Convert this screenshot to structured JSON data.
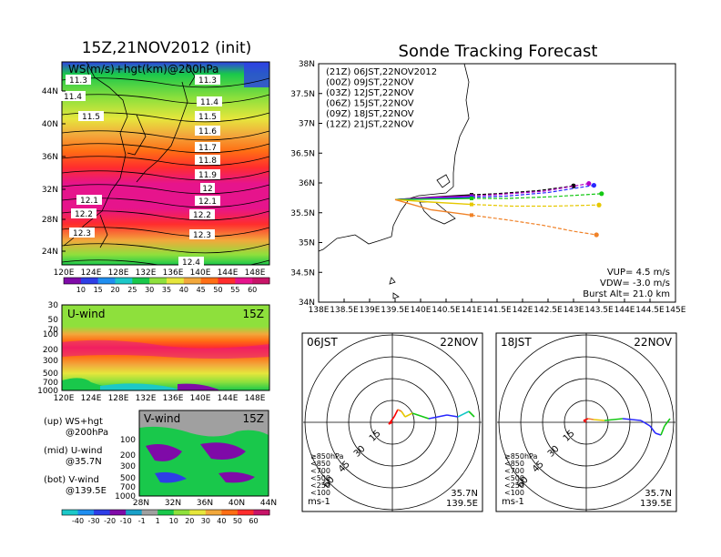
{
  "left": {
    "title": "15Z,21NOV2012 (init)",
    "map": {
      "label": "WS(m/s)+hgt(km)@200hPa",
      "lat_ticks": [
        "44N",
        "40N",
        "36N",
        "32N",
        "28N",
        "24N"
      ],
      "lon_ticks": [
        "120E",
        "124E",
        "128E",
        "132E",
        "136E",
        "140E",
        "144E",
        "148E"
      ],
      "contours": [
        {
          "label": "11.3"
        },
        {
          "label": "11.3"
        },
        {
          "label": "11.4"
        },
        {
          "label": "11.4"
        },
        {
          "label": "11.5"
        },
        {
          "label": "11.5"
        },
        {
          "label": "11.6"
        },
        {
          "label": "11.7"
        },
        {
          "label": "11.8"
        },
        {
          "label": "11.9"
        },
        {
          "label": "12"
        },
        {
          "label": "12.1"
        },
        {
          "label": "12.1"
        },
        {
          "label": "12.2"
        },
        {
          "label": "12.2"
        },
        {
          "label": "12.3"
        },
        {
          "label": "12.3"
        },
        {
          "label": "12.4"
        }
      ]
    },
    "colorbar_top": {
      "labels": [
        "10",
        "15",
        "20",
        "25",
        "30",
        "35",
        "40",
        "45",
        "50",
        "55",
        "60"
      ],
      "colors": [
        "#7f0aa8",
        "#2e3ee6",
        "#1f8ef0",
        "#1cc8c8",
        "#19c84b",
        "#8ee03c",
        "#e6e63c",
        "#f2a83c",
        "#ff6e14",
        "#ff2d2d",
        "#e6148c",
        "#c81468"
      ]
    },
    "uwind": {
      "label": "U-wind",
      "time": "15Z",
      "p_ticks": [
        "30",
        "50",
        "70",
        "100",
        "200",
        "300",
        "500",
        "700",
        "1000"
      ],
      "lon_ticks": [
        "120E",
        "124E",
        "128E",
        "132E",
        "136E",
        "140E",
        "144E",
        "148E"
      ]
    },
    "vwind": {
      "label": "V-wind",
      "time": "15Z",
      "p_ticks": [
        "100",
        "200",
        "300",
        "500",
        "700",
        "1000"
      ],
      "lat_ticks": [
        "28N",
        "32N",
        "36N",
        "40N",
        "44N"
      ]
    },
    "legend": {
      "up_1": "(up) WS+hgt",
      "up_2": "@200hPa",
      "mid_1": "(mid) U-wind",
      "mid_2": "@35.7N",
      "bot_1": "(bot) V-wind",
      "bot_2": "@139.5E"
    },
    "colorbar_bottom": {
      "labels": [
        "-40",
        "-30",
        "-20",
        "-10",
        "-1",
        "1",
        "10",
        "20",
        "30",
        "40",
        "50",
        "60"
      ],
      "colors": [
        "#1cc8c8",
        "#1f8ef0",
        "#2e3ee6",
        "#7f0aa8",
        "#19a0c8",
        "#a0a0a0",
        "#19c84b",
        "#8ee03c",
        "#e6e63c",
        "#f2a83c",
        "#ff6e14",
        "#ff2d2d",
        "#c81468"
      ]
    }
  },
  "right": {
    "title": "Sonde Tracking Forecast",
    "lat_ticks": [
      "38N",
      "37.5N",
      "37N",
      "36.5N",
      "36N",
      "35.5N",
      "35N",
      "34.5N",
      "34N"
    ],
    "lon_ticks": [
      "138E",
      "138.5E",
      "139E",
      "139.5E",
      "140E",
      "140.5E",
      "141E",
      "141.5E",
      "142E",
      "142.5E",
      "143E",
      "143.5E",
      "144E",
      "144.5E",
      "145E"
    ],
    "legend": [
      {
        "label": "(21Z) 06JST,22NOV2012",
        "color": "#000000"
      },
      {
        "label": "(00Z) 09JST,22NOV",
        "color": "#b400c8"
      },
      {
        "label": "(03Z) 12JST,22NOV",
        "color": "#2828ff"
      },
      {
        "label": "(06Z) 15JST,22NOV",
        "color": "#14c814"
      },
      {
        "label": "(09Z) 18JST,22NOV",
        "color": "#e6c800"
      },
      {
        "label": "(12Z) 21JST,22NOV",
        "color": "#f08228"
      }
    ],
    "info": {
      "vup": "VUP= 4.5 m/s",
      "vdw": "VDW= -3.0 m/s",
      "burst": "Burst Alt= 21.0 km"
    }
  },
  "polar_left": {
    "time": "06JST",
    "date": "22NOV",
    "rings": [
      "15",
      "30",
      "45",
      "60"
    ],
    "levels": [
      {
        "label": "≥850hPa",
        "color": "#ff0000"
      },
      {
        "label": "<850",
        "color": "#f08228"
      },
      {
        "label": "<700",
        "color": "#e6c800"
      },
      {
        "label": "<500",
        "color": "#14c814"
      },
      {
        "label": "<250",
        "color": "#14c8c8"
      },
      {
        "label": "<100",
        "color": "#2828ff"
      }
    ],
    "unit": "ms-1",
    "lat": "35.7N",
    "lon": "139.5E"
  },
  "polar_right": {
    "time": "18JST",
    "date": "22NOV",
    "rings": [
      "15",
      "30",
      "45",
      "60"
    ],
    "levels": [
      {
        "label": "≥850hPa",
        "color": "#ff0000"
      },
      {
        "label": "<850",
        "color": "#f08228"
      },
      {
        "label": "<700",
        "color": "#e6c800"
      },
      {
        "label": "<500",
        "color": "#14c814"
      },
      {
        "label": "<250",
        "color": "#14c8c8"
      },
      {
        "label": "<100",
        "color": "#2828ff"
      }
    ],
    "unit": "ms-1",
    "lat": "35.7N",
    "lon": "139.5E"
  },
  "chart_data": [
    {
      "type": "heatmap",
      "title": "15Z,21NOV2012 (init)",
      "subtitle": "WS(m/s)+hgt(km)@200hPa",
      "xlim": [
        120,
        150
      ],
      "ylim": [
        22,
        48
      ],
      "color_levels": [
        10,
        15,
        20,
        25,
        30,
        35,
        40,
        45,
        50,
        55,
        60
      ],
      "height_contours_km": [
        11.3,
        11.4,
        11.5,
        11.6,
        11.7,
        11.8,
        11.9,
        12,
        12.1,
        12.2,
        12.3,
        12.4
      ]
    },
    {
      "type": "heatmap",
      "title": "U-wind",
      "annotation": "15Z",
      "xlim": [
        120,
        150
      ],
      "ylim_hPa": [
        1000,
        30
      ]
    },
    {
      "type": "heatmap",
      "title": "V-wind",
      "annotation": "15Z",
      "xlim": [
        28,
        44
      ],
      "ylim_hPa": [
        1000,
        100
      ]
    },
    {
      "type": "line",
      "title": "Sonde Tracking Forecast",
      "xlim": [
        138,
        145
      ],
      "ylim": [
        34,
        38
      ],
      "origin": [
        139.5,
        35.72
      ],
      "series": [
        {
          "name": "(21Z) 06JST,22NOV2012",
          "x": [
            139.5,
            140.2,
            141.0,
            141.5,
            142.3,
            143.0
          ],
          "y": [
            35.72,
            35.76,
            35.8,
            35.82,
            35.87,
            35.95
          ]
        },
        {
          "name": "(00Z) 09JST,22NOV",
          "x": [
            139.5,
            140.3,
            141.0,
            141.6,
            142.4,
            143.3
          ],
          "y": [
            35.72,
            35.76,
            35.78,
            35.81,
            35.86,
            35.99
          ]
        },
        {
          "name": "(03Z) 12JST,22NOV",
          "x": [
            139.5,
            140.3,
            141.0,
            141.7,
            142.5,
            143.4
          ],
          "y": [
            35.72,
            35.74,
            35.76,
            35.78,
            35.84,
            35.96
          ]
        },
        {
          "name": "(06Z) 15JST,22NOV",
          "x": [
            139.5,
            140.3,
            141.0,
            141.7,
            142.6,
            143.55
          ],
          "y": [
            35.72,
            35.73,
            35.74,
            35.74,
            35.77,
            35.82
          ]
        },
        {
          "name": "(09Z) 18JST,22NOV",
          "x": [
            139.5,
            140.2,
            141.0,
            141.8,
            142.6,
            143.5
          ],
          "y": [
            35.72,
            35.68,
            35.64,
            35.61,
            35.61,
            35.63
          ]
        },
        {
          "name": "(12Z) 21JST,22NOV",
          "x": [
            139.5,
            140.2,
            141.0,
            141.7,
            142.4,
            143.0,
            143.45
          ],
          "y": [
            35.72,
            35.55,
            35.46,
            35.38,
            35.29,
            35.19,
            35.13
          ]
        }
      ]
    }
  ]
}
